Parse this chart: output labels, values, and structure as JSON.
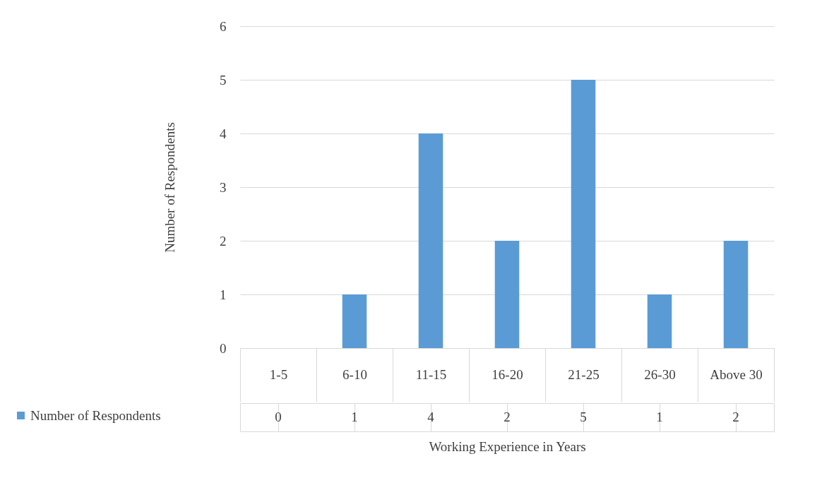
{
  "chart_data": {
    "type": "bar",
    "xlabel": "Working Experience in Years",
    "ylabel": "Number of Respondents",
    "categories": [
      "1-5",
      "6-10",
      "11-15",
      "16-20",
      "21-25",
      "26-30",
      "Above 30"
    ],
    "series": [
      {
        "name": "Number of Respondents",
        "color": "#5b9bd5",
        "values": [
          0,
          1,
          4,
          2,
          5,
          1,
          2
        ]
      }
    ],
    "ylim": [
      0,
      6
    ],
    "yticks": [
      0,
      1,
      2,
      3,
      4,
      5,
      6
    ],
    "grid": "y",
    "legend": "bottom left",
    "data_labels": true
  }
}
